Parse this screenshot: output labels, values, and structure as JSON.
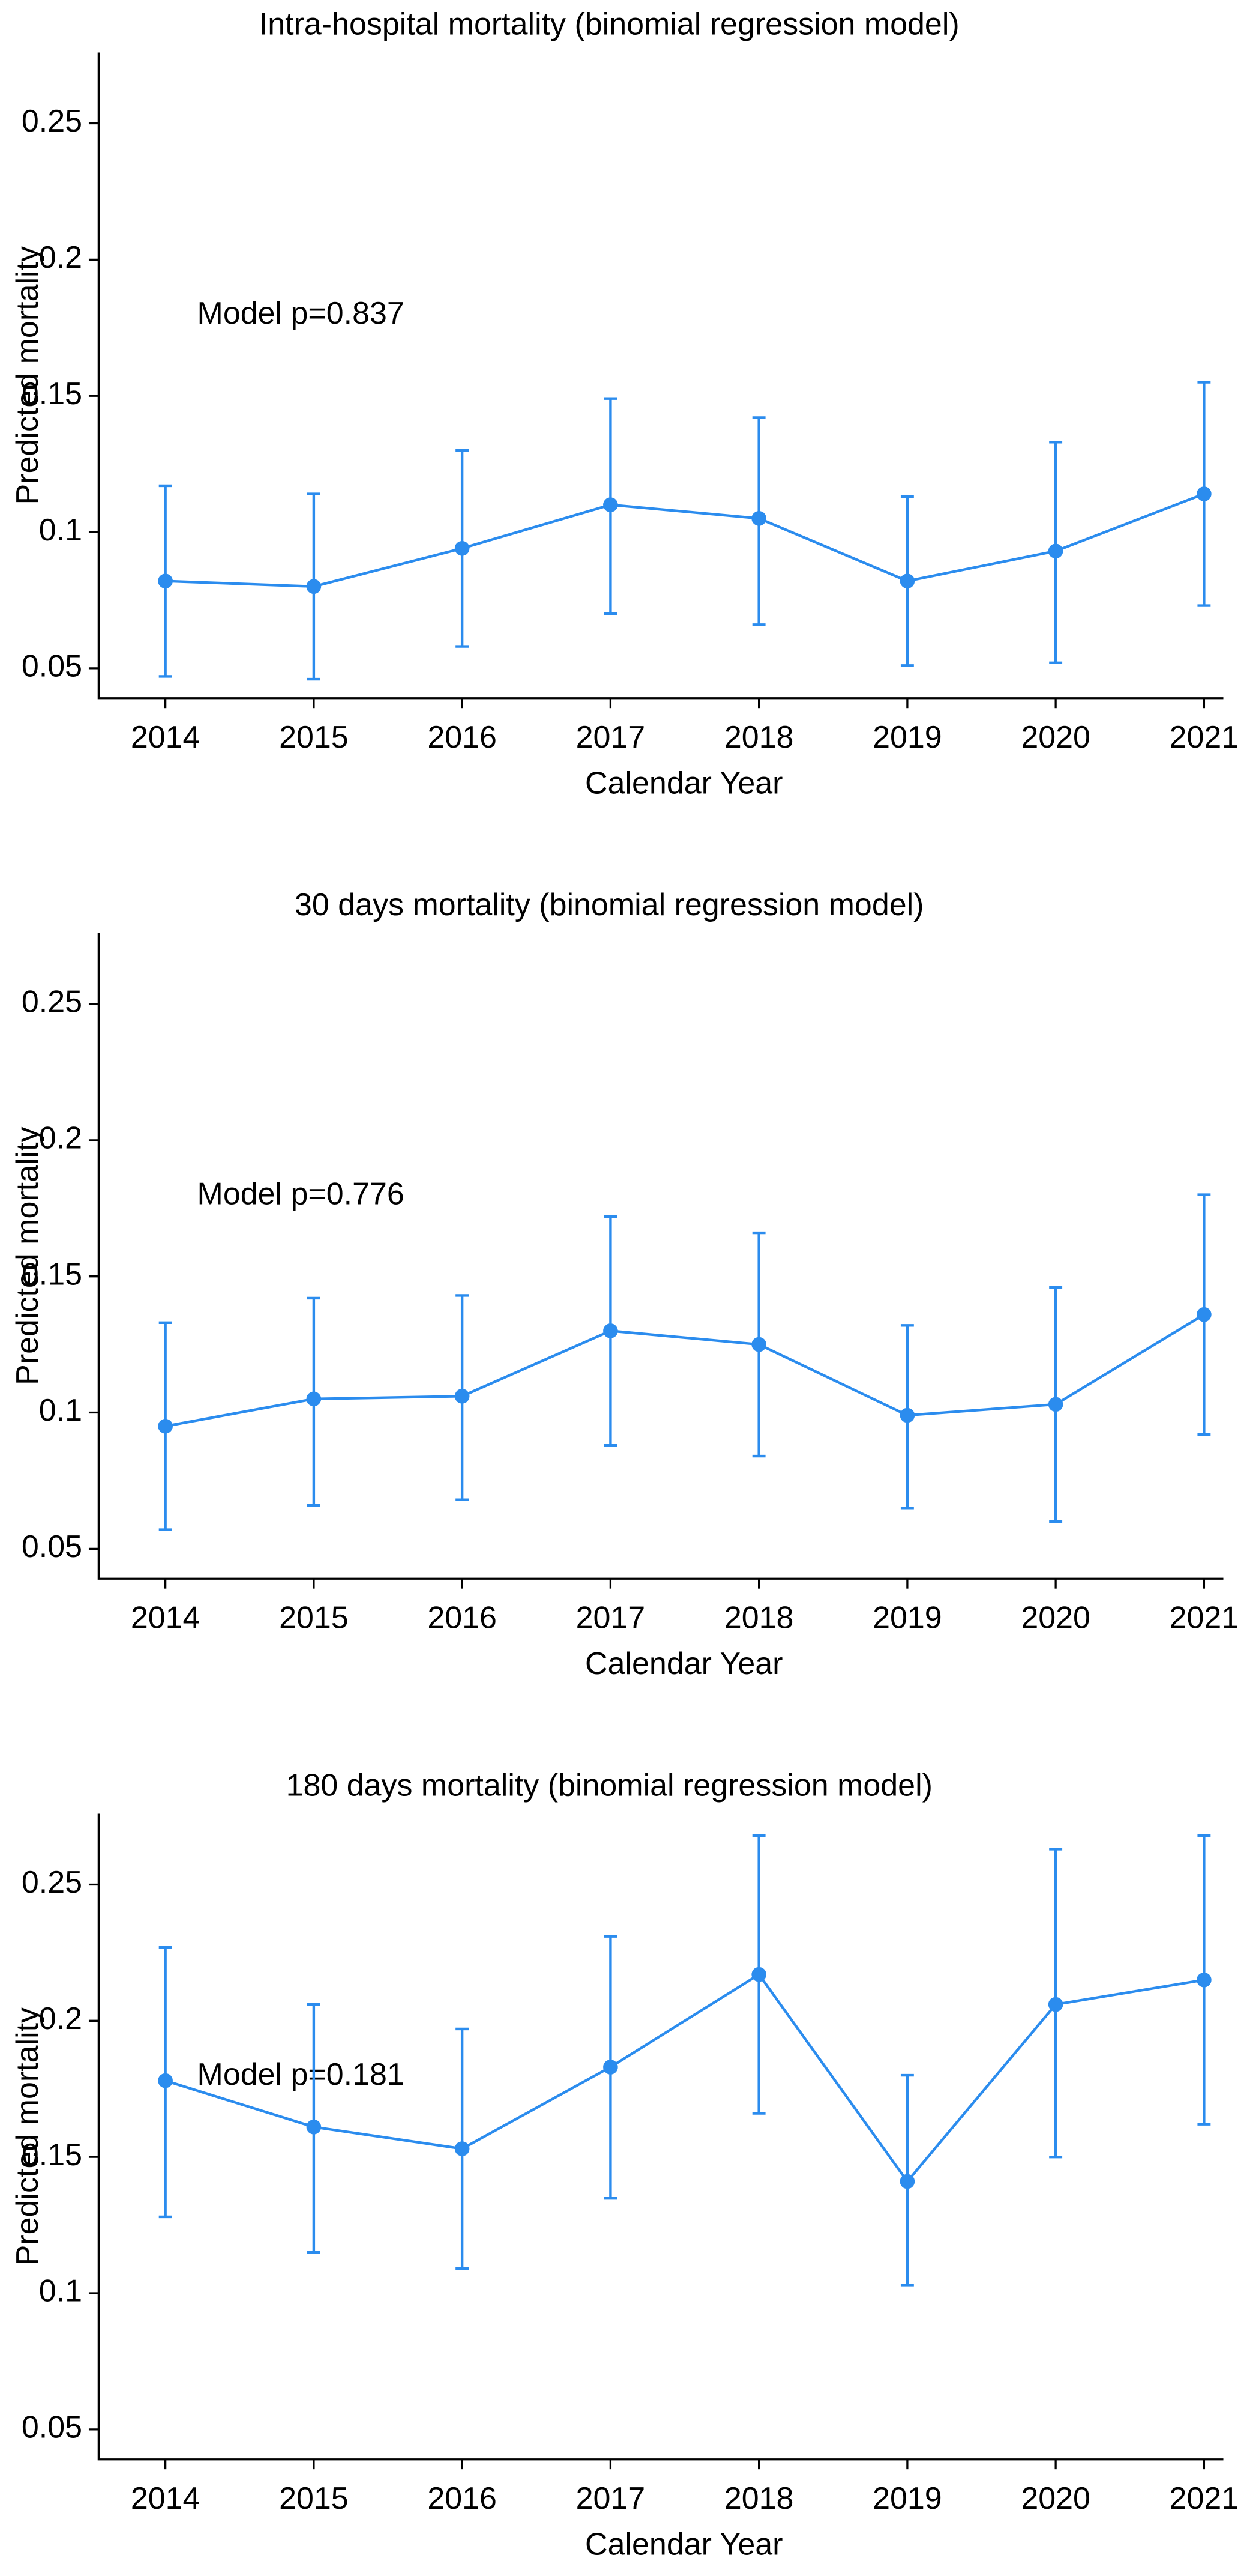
{
  "chart_data": [
    {
      "type": "line",
      "title": "Intra-hospital mortality (binomial regression model)",
      "x_label": "Calendar Year",
      "y_label": "Predicted mortality",
      "annotation": "Model p=0.837",
      "x": [
        2014,
        2015,
        2016,
        2017,
        2018,
        2019,
        2020,
        2021
      ],
      "xlim": [
        2013.55,
        2021.13
      ],
      "xticks": [
        2014,
        2015,
        2016,
        2017,
        2018,
        2019,
        2020,
        2021
      ],
      "ylim": [
        0.039,
        0.276
      ],
      "yticks": [
        0.05,
        0.1,
        0.15,
        0.2,
        0.25
      ],
      "grid": false,
      "series": [
        {
          "color": "#2b8cee",
          "values": [
            0.082,
            0.08,
            0.094,
            0.11,
            0.105,
            0.082,
            0.093,
            0.114
          ],
          "ci_lower": [
            0.047,
            0.046,
            0.058,
            0.07,
            0.066,
            0.051,
            0.052,
            0.073
          ],
          "ci_upper": [
            0.117,
            0.114,
            0.13,
            0.149,
            0.142,
            0.113,
            0.133,
            0.155
          ]
        }
      ]
    },
    {
      "type": "line",
      "title": "30 days mortality (binomial regression model)",
      "x_label": "Calendar Year",
      "y_label": "Predicted mortality",
      "annotation": "Model p=0.776",
      "x": [
        2014,
        2015,
        2016,
        2017,
        2018,
        2019,
        2020,
        2021
      ],
      "xlim": [
        2013.55,
        2021.13
      ],
      "xticks": [
        2014,
        2015,
        2016,
        2017,
        2018,
        2019,
        2020,
        2021
      ],
      "ylim": [
        0.039,
        0.276
      ],
      "yticks": [
        0.05,
        0.1,
        0.15,
        0.2,
        0.25
      ],
      "grid": false,
      "series": [
        {
          "color": "#2b8cee",
          "values": [
            0.095,
            0.105,
            0.106,
            0.13,
            0.125,
            0.099,
            0.103,
            0.136
          ],
          "ci_lower": [
            0.057,
            0.066,
            0.068,
            0.088,
            0.084,
            0.065,
            0.06,
            0.092
          ],
          "ci_upper": [
            0.133,
            0.142,
            0.143,
            0.172,
            0.166,
            0.132,
            0.146,
            0.18
          ]
        }
      ]
    },
    {
      "type": "line",
      "title": "180 days mortality (binomial regression model)",
      "x_label": "Calendar Year",
      "y_label": "Predicted mortality",
      "annotation": "Model p=0.181",
      "x": [
        2014,
        2015,
        2016,
        2017,
        2018,
        2019,
        2020,
        2021
      ],
      "xlim": [
        2013.55,
        2021.13
      ],
      "xticks": [
        2014,
        2015,
        2016,
        2017,
        2018,
        2019,
        2020,
        2021
      ],
      "ylim": [
        0.039,
        0.276
      ],
      "yticks": [
        0.05,
        0.1,
        0.15,
        0.2,
        0.25
      ],
      "grid": false,
      "series": [
        {
          "color": "#2b8cee",
          "values": [
            0.178,
            0.161,
            0.153,
            0.183,
            0.217,
            0.141,
            0.206,
            0.215
          ],
          "ci_lower": [
            0.128,
            0.115,
            0.109,
            0.135,
            0.166,
            0.103,
            0.15,
            0.162
          ],
          "ci_upper": [
            0.227,
            0.206,
            0.197,
            0.231,
            0.268,
            0.18,
            0.263,
            0.268
          ]
        }
      ]
    }
  ]
}
